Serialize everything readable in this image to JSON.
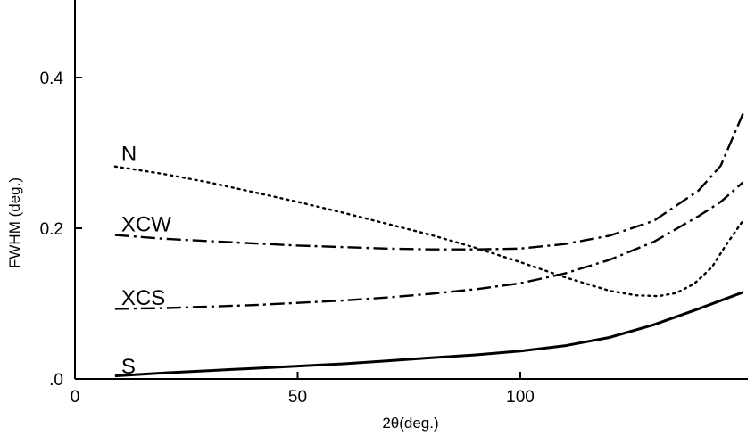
{
  "chart_data": {
    "type": "line",
    "xlabel": "2θ(deg.)",
    "ylabel": "FWHM (deg.)",
    "xlim": [
      0,
      150
    ],
    "ylim": [
      0,
      0.5
    ],
    "x_ticks": [
      {
        "value": 0,
        "label": "0"
      },
      {
        "value": 50,
        "label": "50"
      },
      {
        "value": 100,
        "label": "100"
      }
    ],
    "y_ticks": [
      {
        "value": 0.0,
        "label": ".0"
      },
      {
        "value": 0.2,
        "label": "0.2"
      },
      {
        "value": 0.4,
        "label": "0.4"
      }
    ],
    "grid": false,
    "legend": "inline labels",
    "series": [
      {
        "name": "N",
        "style": "dotted",
        "label_at": [
          10,
          0.295
        ],
        "points": [
          [
            9,
            0.282
          ],
          [
            20,
            0.272
          ],
          [
            30,
            0.261
          ],
          [
            40,
            0.248
          ],
          [
            50,
            0.235
          ],
          [
            60,
            0.221
          ],
          [
            70,
            0.206
          ],
          [
            80,
            0.191
          ],
          [
            90,
            0.174
          ],
          [
            100,
            0.155
          ],
          [
            110,
            0.135
          ],
          [
            120,
            0.117
          ],
          [
            126,
            0.111
          ],
          [
            131,
            0.11
          ],
          [
            135,
            0.114
          ],
          [
            139,
            0.126
          ],
          [
            143,
            0.148
          ],
          [
            146,
            0.176
          ],
          [
            150,
            0.21
          ]
        ]
      },
      {
        "name": "XCW",
        "style": "dashdot",
        "label_at": [
          10,
          0.202
        ],
        "points": [
          [
            9,
            0.191
          ],
          [
            20,
            0.186
          ],
          [
            30,
            0.183
          ],
          [
            40,
            0.18
          ],
          [
            50,
            0.177
          ],
          [
            60,
            0.175
          ],
          [
            70,
            0.173
          ],
          [
            80,
            0.172
          ],
          [
            90,
            0.172
          ],
          [
            100,
            0.173
          ],
          [
            110,
            0.179
          ],
          [
            120,
            0.19
          ],
          [
            130,
            0.21
          ],
          [
            140,
            0.25
          ],
          [
            145,
            0.283
          ],
          [
            150,
            0.352
          ]
        ]
      },
      {
        "name": "XCS",
        "style": "dashdot",
        "label_at": [
          10,
          0.104
        ],
        "points": [
          [
            9,
            0.093
          ],
          [
            20,
            0.094
          ],
          [
            30,
            0.096
          ],
          [
            40,
            0.098
          ],
          [
            50,
            0.101
          ],
          [
            60,
            0.104
          ],
          [
            70,
            0.108
          ],
          [
            80,
            0.113
          ],
          [
            90,
            0.119
          ],
          [
            100,
            0.127
          ],
          [
            110,
            0.14
          ],
          [
            120,
            0.158
          ],
          [
            130,
            0.182
          ],
          [
            140,
            0.216
          ],
          [
            145,
            0.235
          ],
          [
            150,
            0.261
          ]
        ]
      },
      {
        "name": "S",
        "style": "solid",
        "label_at": [
          10,
          0.013
        ],
        "points": [
          [
            9,
            0.004
          ],
          [
            20,
            0.008
          ],
          [
            30,
            0.011
          ],
          [
            40,
            0.014
          ],
          [
            50,
            0.017
          ],
          [
            60,
            0.02
          ],
          [
            70,
            0.024
          ],
          [
            80,
            0.028
          ],
          [
            90,
            0.032
          ],
          [
            100,
            0.037
          ],
          [
            110,
            0.044
          ],
          [
            120,
            0.055
          ],
          [
            130,
            0.072
          ],
          [
            140,
            0.093
          ],
          [
            150,
            0.115
          ]
        ]
      }
    ]
  }
}
